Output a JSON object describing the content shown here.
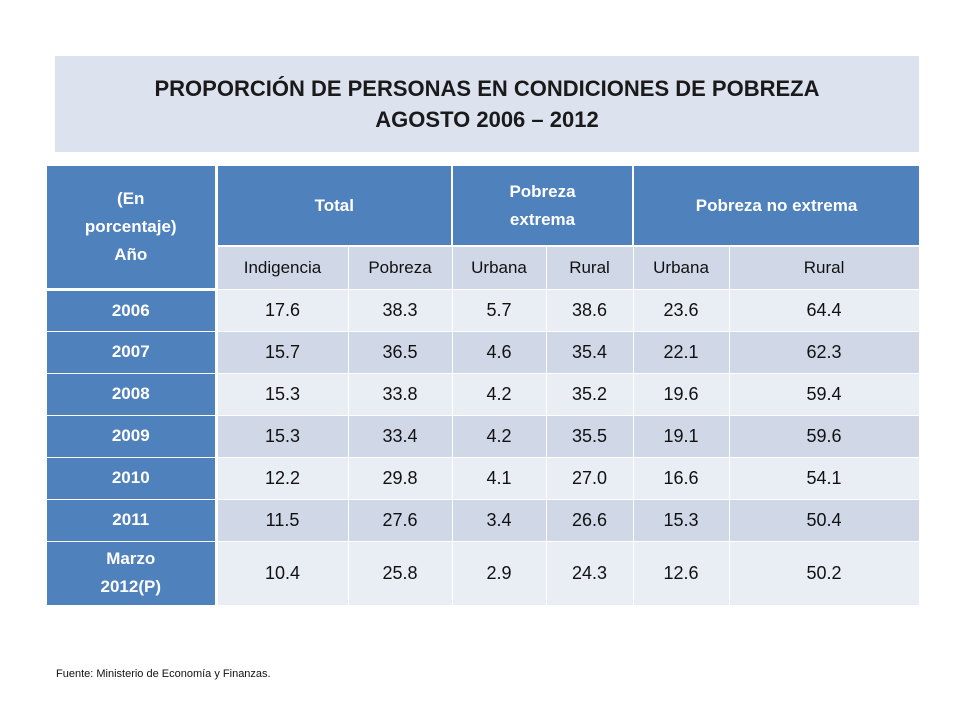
{
  "title": {
    "line1": "PROPORCIÓN DE PERSONAS EN CONDICIONES DE POBREZA",
    "line2": "AGOSTO  2006 – 2012"
  },
  "table": {
    "corner_line1": "(En",
    "corner_line2": "porcentaje)",
    "corner_line3": "Año",
    "groups": [
      "Total",
      "Pobreza extrema",
      "Pobreza no  extrema"
    ],
    "columns": [
      "Indigencia",
      "Pobreza",
      "Urbana",
      "Rural",
      "Urbana",
      "Rural"
    ],
    "rows": [
      {
        "year": "2006",
        "values": [
          "17.6",
          "38.3",
          "5.7",
          "38.6",
          "23.6",
          "64.4"
        ]
      },
      {
        "year": "2007",
        "values": [
          "15.7",
          "36.5",
          "4.6",
          "35.4",
          "22.1",
          "62.3"
        ]
      },
      {
        "year": "2008",
        "values": [
          "15.3",
          "33.8",
          "4.2",
          "35.2",
          "19.6",
          "59.4"
        ]
      },
      {
        "year": "2009",
        "values": [
          "15.3",
          "33.4",
          "4.2",
          "35.5",
          "19.1",
          "59.6"
        ]
      },
      {
        "year": "2010",
        "values": [
          "12.2",
          "29.8",
          "4.1",
          "27.0",
          "16.6",
          "54.1"
        ]
      },
      {
        "year": "2011",
        "values": [
          "11.5",
          "27.6",
          "3.4",
          "26.6",
          "15.3",
          "50.4"
        ]
      },
      {
        "year": "Marzo 2012(P)",
        "year_line1": "Marzo",
        "year_line2": "2012(P)",
        "values": [
          "10.4",
          "25.8",
          "2.9",
          "24.3",
          "12.6",
          "50.2"
        ]
      }
    ]
  },
  "source": "Fuente: Ministerio de Economía y Finanzas.",
  "colors": {
    "header_blue": "#4f81bd",
    "title_band": "#dce3ef",
    "row_light": "#e9edf4",
    "row_dark": "#d0d8e8"
  }
}
